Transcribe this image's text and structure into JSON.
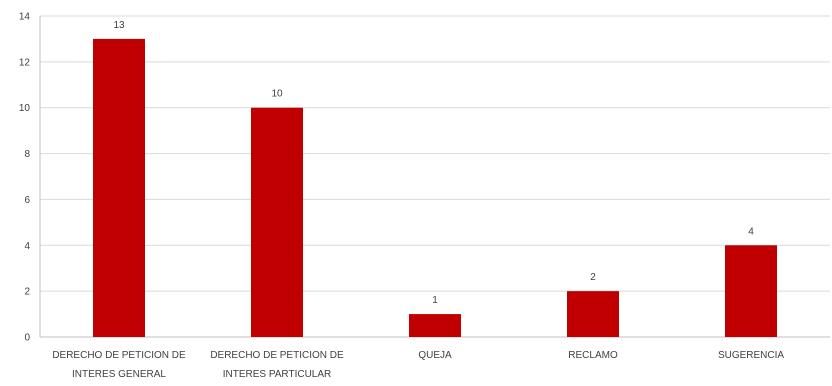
{
  "chart_data": {
    "type": "bar",
    "categories": [
      [
        "DERECHO DE PETICION DE",
        "INTERES GENERAL"
      ],
      [
        "DERECHO DE PETICION DE",
        "INTERES PARTICULAR"
      ],
      [
        "QUEJA"
      ],
      [
        "RECLAMO"
      ],
      [
        "SUGERENCIA"
      ]
    ],
    "values": [
      13,
      10,
      1,
      2,
      4
    ],
    "data_labels": [
      "13",
      "10",
      "1",
      "2",
      "4"
    ],
    "title": "",
    "xlabel": "",
    "ylabel": "",
    "ylim": [
      0,
      14
    ],
    "yticks": [
      0,
      2,
      4,
      6,
      8,
      10,
      12,
      14
    ],
    "ytick_labels": [
      "0",
      "2",
      "4",
      "6",
      "8",
      "10",
      "12",
      "14"
    ],
    "grid": true,
    "legend": "none",
    "colors": {
      "bar": "#c00000",
      "grid": "#d9d9d9",
      "axis": "#bfbfbf",
      "text": "#404040"
    }
  }
}
